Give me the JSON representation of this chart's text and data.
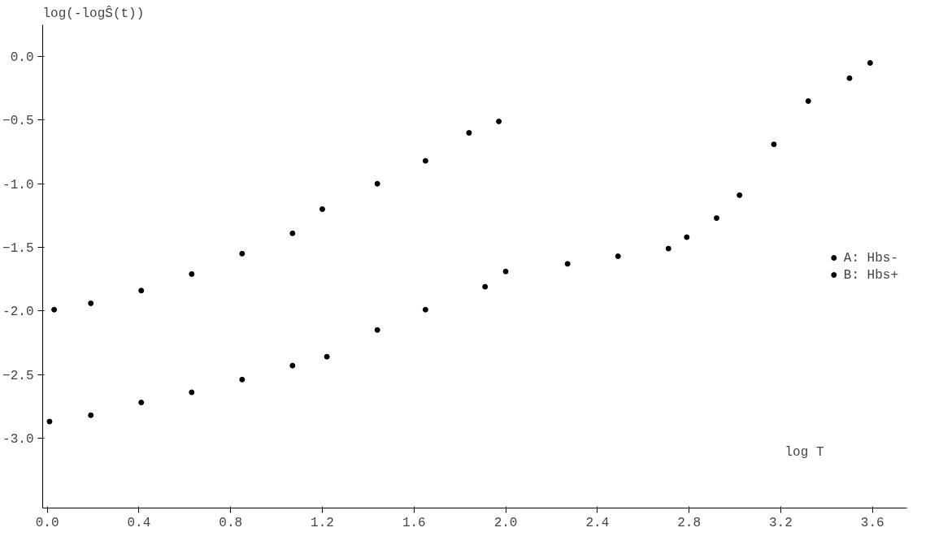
{
  "chart_data": {
    "type": "scatter",
    "ylabel": "log(-logŜ(t))",
    "xlabel": "log T",
    "xlim": [
      -0.02,
      3.75
    ],
    "ylim": [
      -3.55,
      0.25
    ],
    "xticks": [
      {
        "value": 0,
        "label": "0.0"
      },
      {
        "value": 0.4,
        "label": "0.4"
      },
      {
        "value": 0.8,
        "label": "0.8"
      },
      {
        "value": 1.2,
        "label": "1.2"
      },
      {
        "value": 1.6,
        "label": "1.6"
      },
      {
        "value": 2.0,
        "label": "2.0"
      },
      {
        "value": 2.4,
        "label": "2.4"
      },
      {
        "value": 2.8,
        "label": "2.8"
      },
      {
        "value": 3.2,
        "label": "3.2"
      },
      {
        "value": 3.6,
        "label": "3.6"
      }
    ],
    "yticks": [
      {
        "value": 0,
        "label": "0.0"
      },
      -0.5,
      {
        "value": -1,
        "label": "-1.0"
      },
      -1.5,
      {
        "value": -2,
        "label": "-2.0"
      },
      -2.5,
      {
        "value": -3,
        "label": "-3.0"
      }
    ],
    "grid": false,
    "legend": "right",
    "marker": "circle",
    "series": [
      {
        "name": "A: Hbs-",
        "color": "#000000",
        "x": [
          0.01,
          0.19,
          0.41,
          0.63,
          0.85,
          1.07,
          1.22,
          1.44,
          1.65,
          1.91,
          2.0,
          2.27,
          2.49,
          2.71,
          2.79,
          2.92,
          3.02,
          3.17,
          3.32,
          3.5,
          3.59
        ],
        "values": [
          -2.87,
          -2.82,
          -2.72,
          -2.64,
          -2.54,
          -2.43,
          -2.36,
          -2.15,
          -1.99,
          -1.81,
          -1.69,
          -1.63,
          -1.57,
          -1.51,
          -1.42,
          -1.27,
          -1.09,
          -0.69,
          -0.35,
          -0.17,
          -0.05
        ]
      },
      {
        "name": "B: Hbs+",
        "color": "#000000",
        "x": [
          0.03,
          0.19,
          0.41,
          0.63,
          0.85,
          1.07,
          1.2,
          1.44,
          1.65,
          1.84,
          1.97
        ],
        "values": [
          -1.99,
          -1.94,
          -1.84,
          -1.71,
          -1.55,
          -1.39,
          -1.2,
          -1.0,
          -0.82,
          -0.6,
          -0.51
        ]
      }
    ]
  }
}
